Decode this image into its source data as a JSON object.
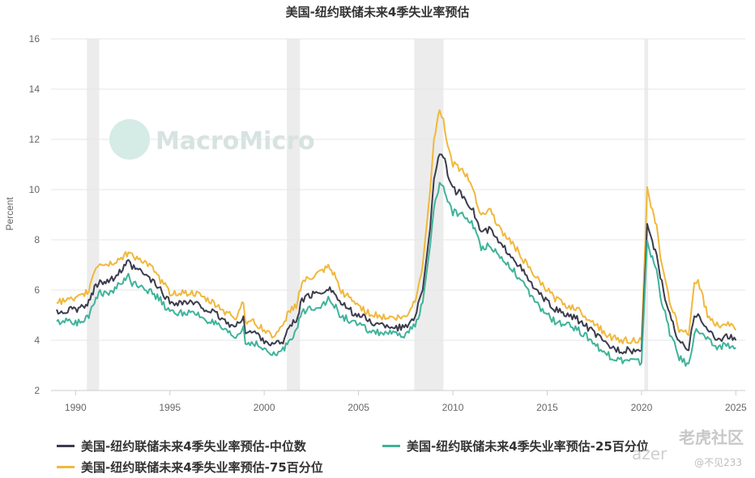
{
  "chart_data": {
    "type": "line",
    "title": "美国-纽约联储未来4季失业率预估",
    "ylabel": "Percent",
    "xlim": [
      1988.7,
      2025.5
    ],
    "ylim": [
      2,
      16
    ],
    "yticks": [
      2,
      4,
      6,
      8,
      10,
      12,
      14,
      16
    ],
    "xticks": [
      "1990",
      "1995",
      "2000",
      "2005",
      "2010",
      "2015",
      "2020",
      "2025"
    ],
    "grid": "horizontal",
    "legend_position": "bottom",
    "recessions": [
      [
        1990.6,
        1991.25
      ],
      [
        2001.2,
        2001.9
      ],
      [
        2007.95,
        2009.5
      ],
      [
        2020.15,
        2020.35
      ]
    ],
    "series": [
      {
        "name": "美国-纽约联储未来4季失业率预估-中位数",
        "color": "#3b3b4d",
        "points": [
          [
            1989.0,
            5.1
          ],
          [
            1989.5,
            5.2
          ],
          [
            1990.0,
            5.2
          ],
          [
            1990.4,
            5.3
          ],
          [
            1990.7,
            5.5
          ],
          [
            1991.0,
            6.1
          ],
          [
            1991.3,
            6.4
          ],
          [
            1991.6,
            6.3
          ],
          [
            1992.0,
            6.5
          ],
          [
            1992.5,
            6.8
          ],
          [
            1992.8,
            7.1
          ],
          [
            1993.0,
            6.9
          ],
          [
            1993.5,
            6.7
          ],
          [
            1994.0,
            6.4
          ],
          [
            1994.5,
            6.0
          ],
          [
            1995.0,
            5.5
          ],
          [
            1995.5,
            5.5
          ],
          [
            1996.0,
            5.5
          ],
          [
            1996.5,
            5.4
          ],
          [
            1997.0,
            5.2
          ],
          [
            1997.5,
            5.0
          ],
          [
            1998.0,
            4.7
          ],
          [
            1998.5,
            4.5
          ],
          [
            1998.9,
            5.0
          ],
          [
            1999.0,
            4.3
          ],
          [
            1999.5,
            4.3
          ],
          [
            2000.0,
            4.0
          ],
          [
            2000.5,
            3.8
          ],
          [
            2001.0,
            4.0
          ],
          [
            2001.3,
            4.5
          ],
          [
            2001.7,
            4.8
          ],
          [
            2002.0,
            5.6
          ],
          [
            2002.5,
            5.8
          ],
          [
            2003.0,
            5.9
          ],
          [
            2003.4,
            6.1
          ],
          [
            2003.8,
            5.8
          ],
          [
            2004.0,
            5.5
          ],
          [
            2004.5,
            5.2
          ],
          [
            2005.0,
            5.0
          ],
          [
            2005.5,
            4.8
          ],
          [
            2006.0,
            4.6
          ],
          [
            2006.5,
            4.6
          ],
          [
            2007.0,
            4.5
          ],
          [
            2007.5,
            4.5
          ],
          [
            2008.0,
            5.0
          ],
          [
            2008.4,
            6.0
          ],
          [
            2008.8,
            8.5
          ],
          [
            2009.0,
            10.5
          ],
          [
            2009.3,
            11.5
          ],
          [
            2009.5,
            11.3
          ],
          [
            2009.8,
            10.5
          ],
          [
            2010.0,
            10.0
          ],
          [
            2010.5,
            9.8
          ],
          [
            2011.0,
            9.3
          ],
          [
            2011.5,
            8.3
          ],
          [
            2012.0,
            8.4
          ],
          [
            2012.5,
            7.8
          ],
          [
            2013.0,
            7.5
          ],
          [
            2013.5,
            7.0
          ],
          [
            2014.0,
            6.4
          ],
          [
            2014.5,
            5.9
          ],
          [
            2015.0,
            5.5
          ],
          [
            2015.5,
            5.2
          ],
          [
            2016.0,
            5.0
          ],
          [
            2016.5,
            4.9
          ],
          [
            2017.0,
            4.6
          ],
          [
            2017.5,
            4.3
          ],
          [
            2018.0,
            3.9
          ],
          [
            2018.5,
            3.7
          ],
          [
            2019.0,
            3.6
          ],
          [
            2019.5,
            3.6
          ],
          [
            2020.0,
            3.6
          ],
          [
            2020.3,
            8.5
          ],
          [
            2020.5,
            8.0
          ],
          [
            2020.8,
            7.5
          ],
          [
            2021.0,
            6.5
          ],
          [
            2021.5,
            5.0
          ],
          [
            2022.0,
            3.9
          ],
          [
            2022.5,
            3.6
          ],
          [
            2022.8,
            5.0
          ],
          [
            2023.0,
            5.1
          ],
          [
            2023.5,
            4.4
          ],
          [
            2024.0,
            4.0
          ],
          [
            2024.5,
            4.2
          ],
          [
            2025.0,
            4.0
          ]
        ]
      },
      {
        "name": "美国-纽约联储未来4季失业率预估-25百分位",
        "color": "#3fb39a",
        "points": [
          [
            1989.0,
            4.7
          ],
          [
            1989.5,
            4.8
          ],
          [
            1990.0,
            4.7
          ],
          [
            1990.4,
            4.8
          ],
          [
            1990.7,
            5.0
          ],
          [
            1991.0,
            5.6
          ],
          [
            1991.3,
            5.9
          ],
          [
            1991.6,
            5.8
          ],
          [
            1992.0,
            6.0
          ],
          [
            1992.5,
            6.3
          ],
          [
            1992.8,
            6.6
          ],
          [
            1993.0,
            6.3
          ],
          [
            1993.5,
            6.2
          ],
          [
            1994.0,
            5.9
          ],
          [
            1994.5,
            5.6
          ],
          [
            1995.0,
            5.1
          ],
          [
            1995.5,
            5.1
          ],
          [
            1996.0,
            5.1
          ],
          [
            1996.5,
            5.0
          ],
          [
            1997.0,
            4.8
          ],
          [
            1997.5,
            4.6
          ],
          [
            1998.0,
            4.3
          ],
          [
            1998.5,
            4.1
          ],
          [
            1998.9,
            4.5
          ],
          [
            1999.0,
            3.9
          ],
          [
            1999.5,
            3.9
          ],
          [
            2000.0,
            3.6
          ],
          [
            2000.5,
            3.4
          ],
          [
            2001.0,
            3.6
          ],
          [
            2001.3,
            4.0
          ],
          [
            2001.7,
            4.4
          ],
          [
            2002.0,
            5.1
          ],
          [
            2002.5,
            5.3
          ],
          [
            2003.0,
            5.4
          ],
          [
            2003.4,
            5.6
          ],
          [
            2003.8,
            5.3
          ],
          [
            2004.0,
            5.0
          ],
          [
            2004.5,
            4.8
          ],
          [
            2005.0,
            4.6
          ],
          [
            2005.5,
            4.4
          ],
          [
            2006.0,
            4.3
          ],
          [
            2006.5,
            4.3
          ],
          [
            2007.0,
            4.2
          ],
          [
            2007.5,
            4.2
          ],
          [
            2008.0,
            4.6
          ],
          [
            2008.4,
            5.5
          ],
          [
            2008.8,
            7.8
          ],
          [
            2009.0,
            9.3
          ],
          [
            2009.3,
            10.2
          ],
          [
            2009.5,
            10.0
          ],
          [
            2009.8,
            9.5
          ],
          [
            2010.0,
            9.1
          ],
          [
            2010.5,
            9.0
          ],
          [
            2011.0,
            8.7
          ],
          [
            2011.5,
            7.7
          ],
          [
            2012.0,
            7.8
          ],
          [
            2012.5,
            7.3
          ],
          [
            2013.0,
            7.0
          ],
          [
            2013.5,
            6.5
          ],
          [
            2014.0,
            5.9
          ],
          [
            2014.5,
            5.4
          ],
          [
            2015.0,
            5.0
          ],
          [
            2015.5,
            4.7
          ],
          [
            2016.0,
            4.6
          ],
          [
            2016.5,
            4.5
          ],
          [
            2017.0,
            4.2
          ],
          [
            2017.5,
            3.9
          ],
          [
            2018.0,
            3.5
          ],
          [
            2018.5,
            3.3
          ],
          [
            2019.0,
            3.2
          ],
          [
            2019.5,
            3.2
          ],
          [
            2020.0,
            3.1
          ],
          [
            2020.3,
            8.0
          ],
          [
            2020.5,
            7.4
          ],
          [
            2020.8,
            6.8
          ],
          [
            2021.0,
            5.8
          ],
          [
            2021.5,
            4.3
          ],
          [
            2022.0,
            3.3
          ],
          [
            2022.5,
            3.0
          ],
          [
            2022.8,
            4.3
          ],
          [
            2023.0,
            4.4
          ],
          [
            2023.5,
            4.0
          ],
          [
            2024.0,
            3.7
          ],
          [
            2024.5,
            3.8
          ],
          [
            2025.0,
            3.7
          ]
        ]
      },
      {
        "name": "美国-纽约联储未来4季失业率预估-75百分位",
        "color": "#f0b83c",
        "points": [
          [
            1989.0,
            5.5
          ],
          [
            1989.5,
            5.6
          ],
          [
            1990.0,
            5.6
          ],
          [
            1990.4,
            5.8
          ],
          [
            1990.7,
            6.0
          ],
          [
            1991.0,
            6.8
          ],
          [
            1991.3,
            7.1
          ],
          [
            1991.6,
            7.0
          ],
          [
            1992.0,
            7.1
          ],
          [
            1992.5,
            7.3
          ],
          [
            1992.8,
            7.5
          ],
          [
            1993.0,
            7.4
          ],
          [
            1993.5,
            7.2
          ],
          [
            1994.0,
            6.9
          ],
          [
            1994.5,
            6.4
          ],
          [
            1995.0,
            5.9
          ],
          [
            1995.5,
            5.9
          ],
          [
            1996.0,
            5.9
          ],
          [
            1996.5,
            5.8
          ],
          [
            1997.0,
            5.6
          ],
          [
            1997.5,
            5.4
          ],
          [
            1998.0,
            5.1
          ],
          [
            1998.5,
            4.9
          ],
          [
            1998.9,
            5.6
          ],
          [
            1999.0,
            4.8
          ],
          [
            1999.5,
            4.7
          ],
          [
            2000.0,
            4.4
          ],
          [
            2000.5,
            4.2
          ],
          [
            2001.0,
            4.5
          ],
          [
            2001.3,
            5.2
          ],
          [
            2001.7,
            5.4
          ],
          [
            2002.0,
            6.3
          ],
          [
            2002.5,
            6.5
          ],
          [
            2003.0,
            6.7
          ],
          [
            2003.4,
            6.9
          ],
          [
            2003.8,
            6.5
          ],
          [
            2004.0,
            6.0
          ],
          [
            2004.5,
            5.7
          ],
          [
            2005.0,
            5.4
          ],
          [
            2005.5,
            5.1
          ],
          [
            2006.0,
            5.0
          ],
          [
            2006.5,
            4.9
          ],
          [
            2007.0,
            4.9
          ],
          [
            2007.5,
            4.9
          ],
          [
            2008.0,
            5.6
          ],
          [
            2008.4,
            7.0
          ],
          [
            2008.8,
            10.0
          ],
          [
            2009.0,
            12.0
          ],
          [
            2009.3,
            13.2
          ],
          [
            2009.5,
            12.8
          ],
          [
            2009.8,
            11.5
          ],
          [
            2010.0,
            11.0
          ],
          [
            2010.5,
            10.8
          ],
          [
            2011.0,
            10.2
          ],
          [
            2011.5,
            9.0
          ],
          [
            2012.0,
            9.2
          ],
          [
            2012.5,
            8.4
          ],
          [
            2013.0,
            8.0
          ],
          [
            2013.5,
            7.5
          ],
          [
            2014.0,
            6.9
          ],
          [
            2014.5,
            6.4
          ],
          [
            2015.0,
            6.0
          ],
          [
            2015.5,
            5.6
          ],
          [
            2016.0,
            5.4
          ],
          [
            2016.5,
            5.3
          ],
          [
            2017.0,
            5.0
          ],
          [
            2017.5,
            4.7
          ],
          [
            2018.0,
            4.3
          ],
          [
            2018.5,
            4.1
          ],
          [
            2019.0,
            4.0
          ],
          [
            2019.5,
            4.0
          ],
          [
            2020.0,
            4.0
          ],
          [
            2020.3,
            10.0
          ],
          [
            2020.5,
            9.3
          ],
          [
            2020.8,
            8.5
          ],
          [
            2021.0,
            7.3
          ],
          [
            2021.5,
            5.6
          ],
          [
            2022.0,
            4.4
          ],
          [
            2022.5,
            4.2
          ],
          [
            2022.8,
            6.3
          ],
          [
            2023.0,
            6.4
          ],
          [
            2023.5,
            5.0
          ],
          [
            2024.0,
            4.6
          ],
          [
            2024.5,
            4.7
          ],
          [
            2025.0,
            4.4
          ]
        ]
      }
    ]
  },
  "legend": [
    {
      "label": "美国-纽约联储未来4季失业率预估-中位数",
      "color": "#3b3b4d"
    },
    {
      "label": "美国-纽约联储未来4季失业率预估-25百分位",
      "color": "#3fb39a"
    },
    {
      "label": "美国-纽约联储未来4季失业率预估-75百分位",
      "color": "#f0b83c"
    }
  ],
  "watermarks": {
    "main": "MacroMicro",
    "corner": "老虎社区",
    "corner_user": "@不见233",
    "overlay": "azer"
  }
}
